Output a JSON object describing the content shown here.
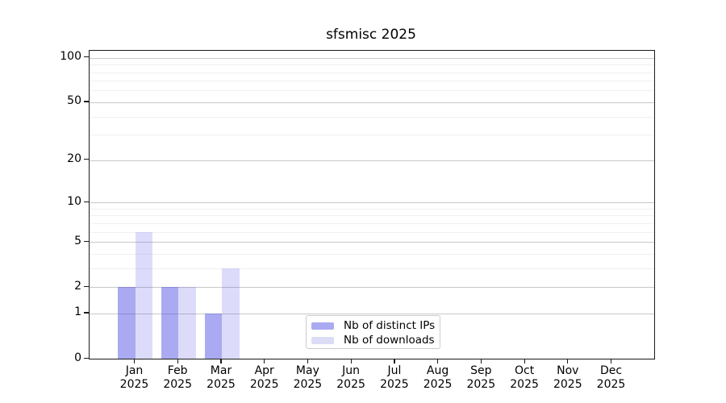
{
  "chart_data": {
    "type": "bar",
    "title": "sfsmisc 2025",
    "categories": [
      "Jan 2025",
      "Feb 2025",
      "Mar 2025",
      "Apr 2025",
      "May 2025",
      "Jun 2025",
      "Jul 2025",
      "Aug 2025",
      "Sep 2025",
      "Oct 2025",
      "Nov 2025",
      "Dec 2025"
    ],
    "series": [
      {
        "name": "Nb of distinct IPs",
        "values": [
          2,
          2,
          1,
          0,
          0,
          0,
          0,
          0,
          0,
          0,
          0,
          0
        ],
        "fill": "rgba(66,66,226,0.45)",
        "legend_swatch": "#aaaaf2"
      },
      {
        "name": "Nb of downloads",
        "values": [
          6,
          2,
          3,
          0,
          0,
          0,
          0,
          0,
          0,
          0,
          0,
          0
        ],
        "fill": "rgba(66,66,226,0.185)",
        "legend_swatch": "#dcdcf7"
      }
    ],
    "xlabel": "",
    "ylabel": "",
    "yscale": "log1p",
    "yticks": [
      0,
      1,
      2,
      5,
      10,
      20,
      50,
      100
    ],
    "yticks_minor": [
      3,
      4,
      6,
      7,
      8,
      9,
      30,
      40,
      60,
      70,
      80,
      90
    ],
    "ylim": [
      0,
      112
    ],
    "grid": "horizontal",
    "legend_position": "lower center",
    "colors": {
      "major_grid": "#c8c8c8",
      "minor_grid": "#f0f0f0",
      "axis": "#1a1a1a",
      "text": "#000000"
    }
  }
}
